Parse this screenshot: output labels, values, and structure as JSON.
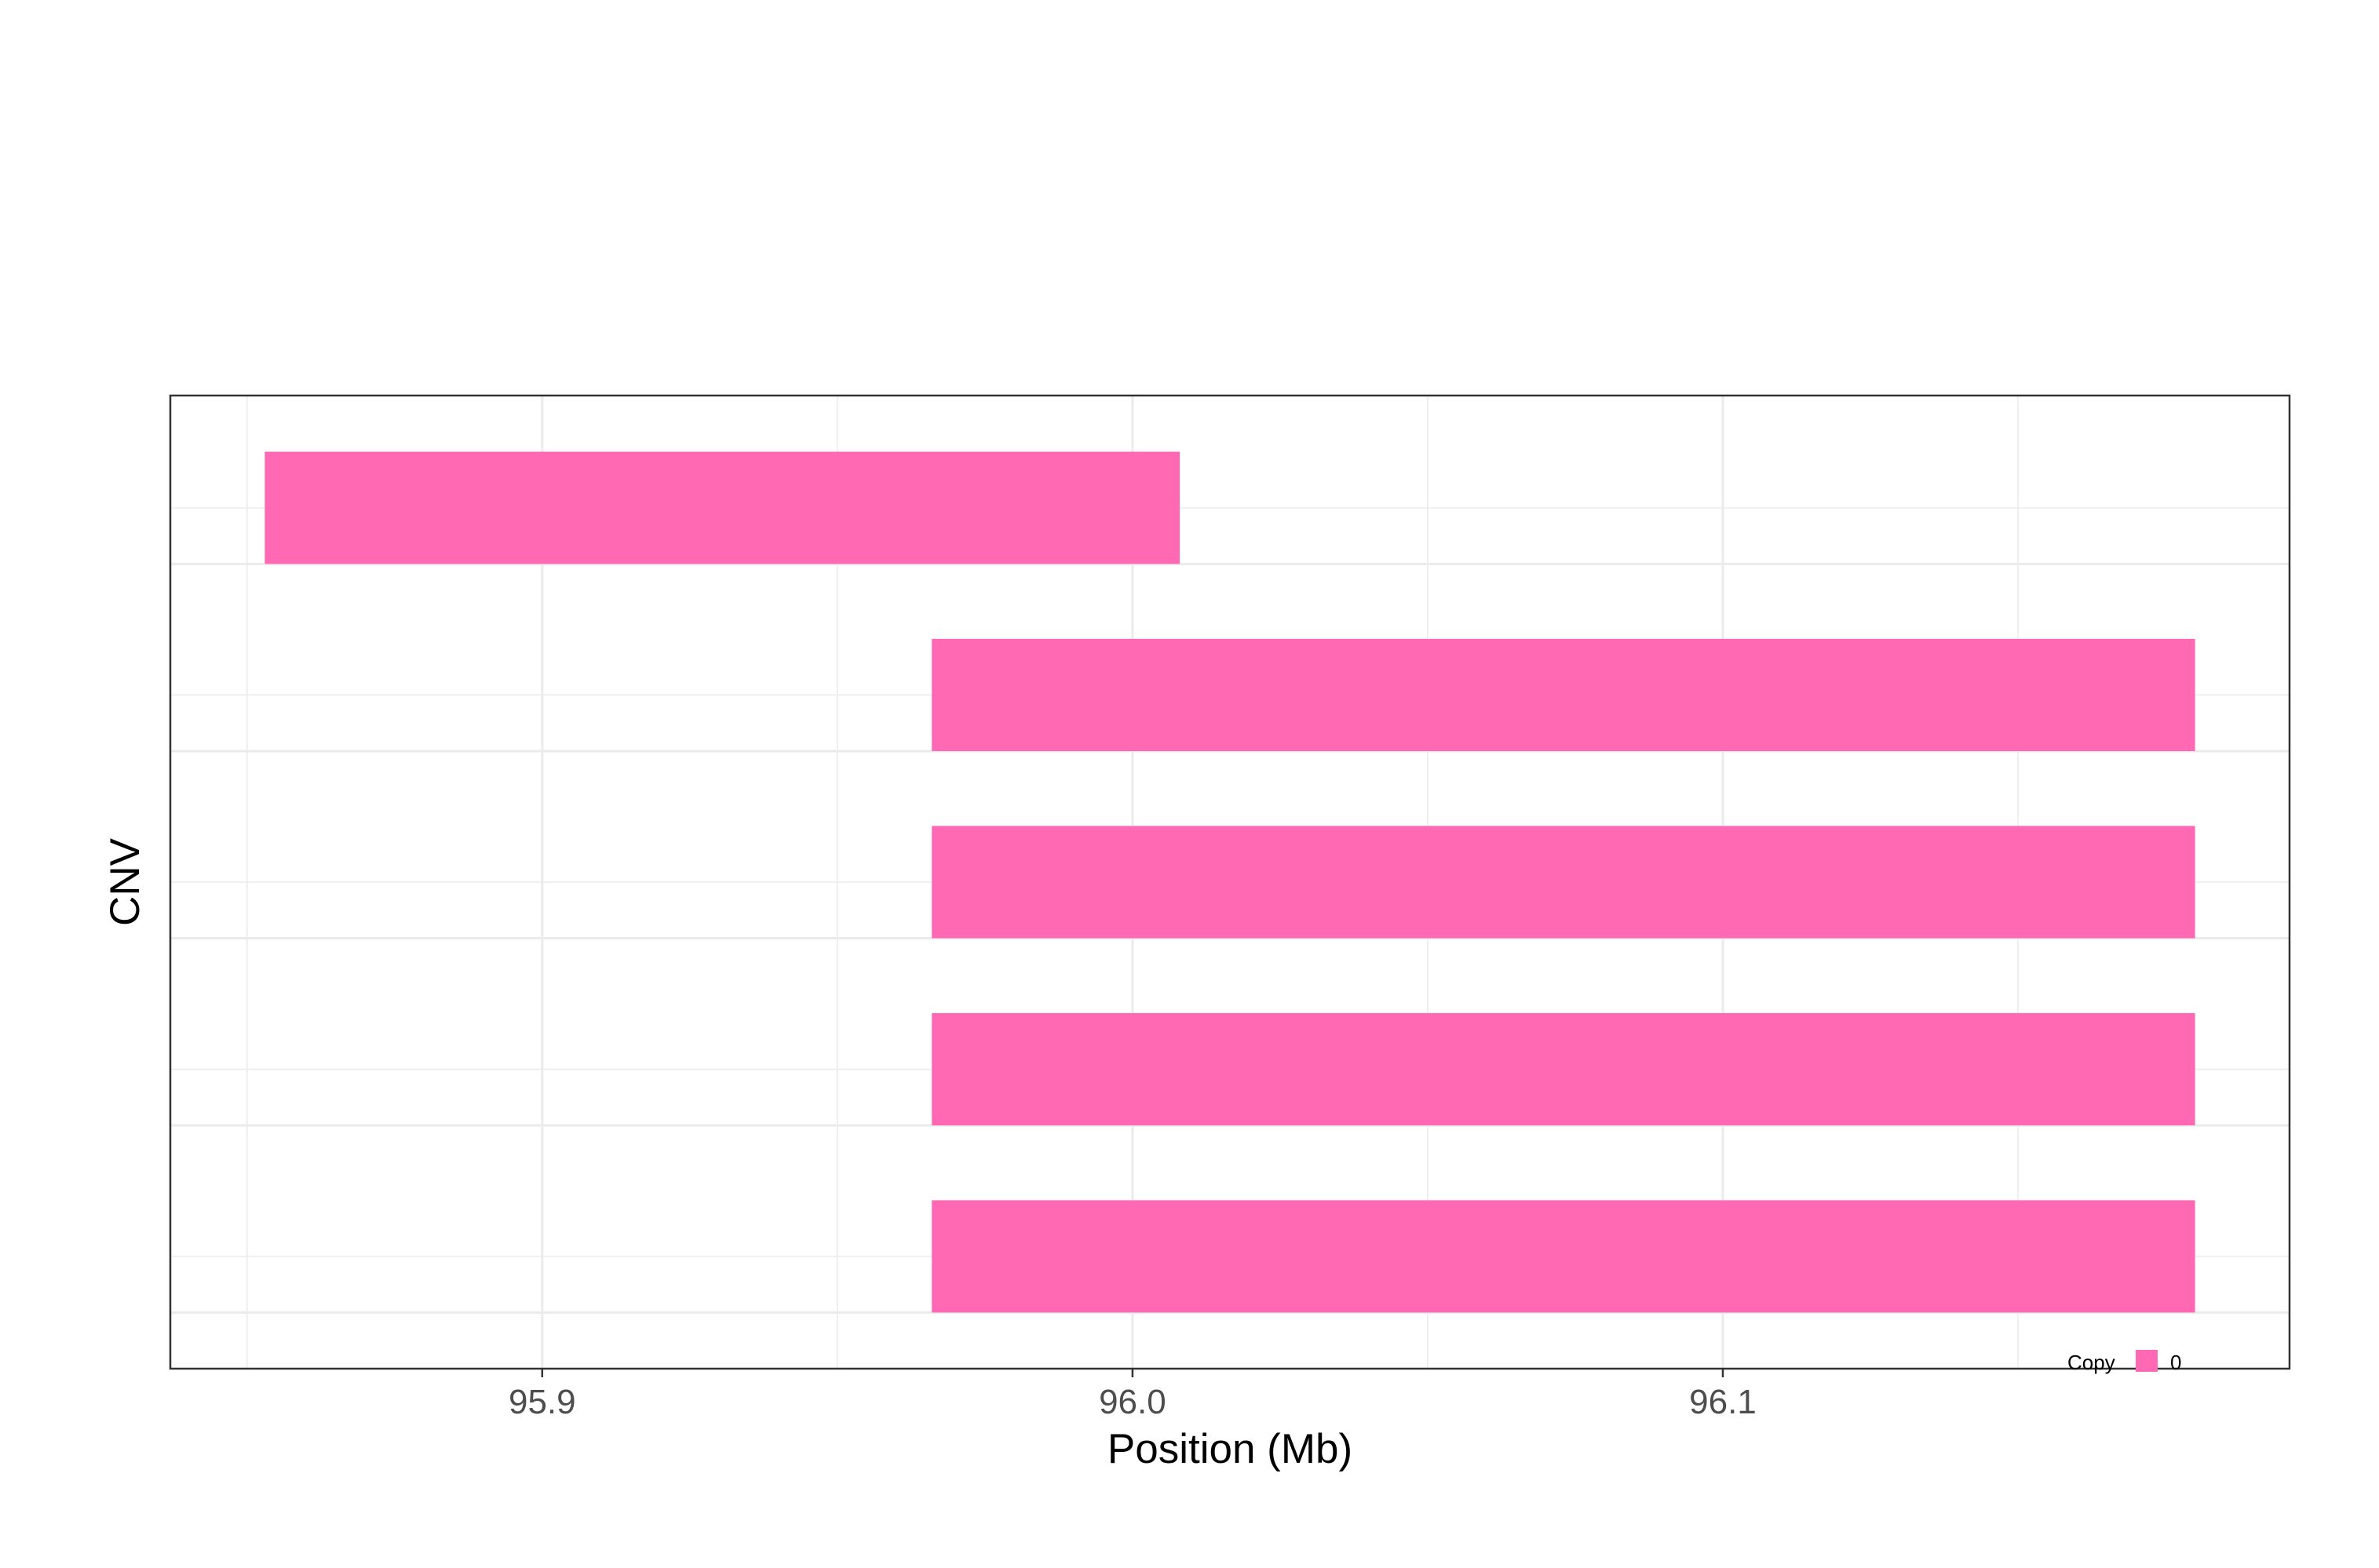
{
  "chart_data": {
    "type": "bar",
    "orientation": "horizontal-interval",
    "xlabel": "Position (Mb)",
    "ylabel": "CNV",
    "xlim": [
      95.837,
      96.196
    ],
    "x_ticks": [
      95.9,
      96.0,
      96.1
    ],
    "x_tick_labels": [
      "95.9",
      "96.0",
      "96.1"
    ],
    "grid": true,
    "legend": {
      "title": "Copy",
      "position": "bottom-right",
      "entries": [
        {
          "label": "0",
          "color": "#ff69b4"
        }
      ]
    },
    "series": [
      {
        "name": "0",
        "color": "#ff69b4",
        "segments": [
          {
            "start": 95.853,
            "end": 96.008
          },
          {
            "start": 95.966,
            "end": 96.18
          },
          {
            "start": 95.966,
            "end": 96.18
          },
          {
            "start": 95.966,
            "end": 96.18
          },
          {
            "start": 95.966,
            "end": 96.18
          }
        ]
      }
    ]
  }
}
